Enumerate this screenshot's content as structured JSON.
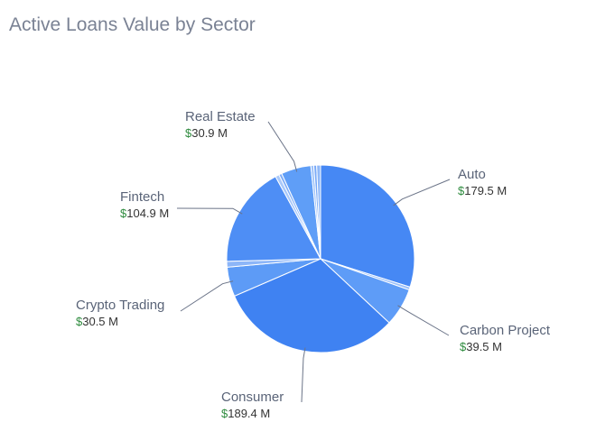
{
  "chart_data": {
    "type": "pie",
    "title": "Active Loans Value by Sector",
    "currency_prefix": "$",
    "categories": [
      "Auto",
      null,
      "Carbon Project",
      "Consumer",
      "Crypto Trading",
      null,
      "Fintech",
      null,
      null,
      "Real Estate",
      null,
      null,
      null
    ],
    "values": [
      179.5,
      3,
      39.5,
      189.4,
      30.5,
      6,
      104.9,
      4,
      3,
      30.9,
      3,
      3,
      4
    ],
    "value_labels": [
      "179.5 M",
      null,
      "39.5 M",
      "189.4 M",
      "30.5 M",
      null,
      "104.9 M",
      null,
      null,
      "30.9 M",
      null,
      null,
      null
    ],
    "colors": [
      "#4688f4",
      "#9cc0f9",
      "#5e9cf7",
      "#3f82f2",
      "#5d9bf6",
      "#8db6f8",
      "#4e8ef5",
      "#a9c9fa",
      "#7eadf7",
      "#5f9ef7",
      "#9ec2f9",
      "#7aaaf7",
      "#8fb8f8"
    ]
  }
}
